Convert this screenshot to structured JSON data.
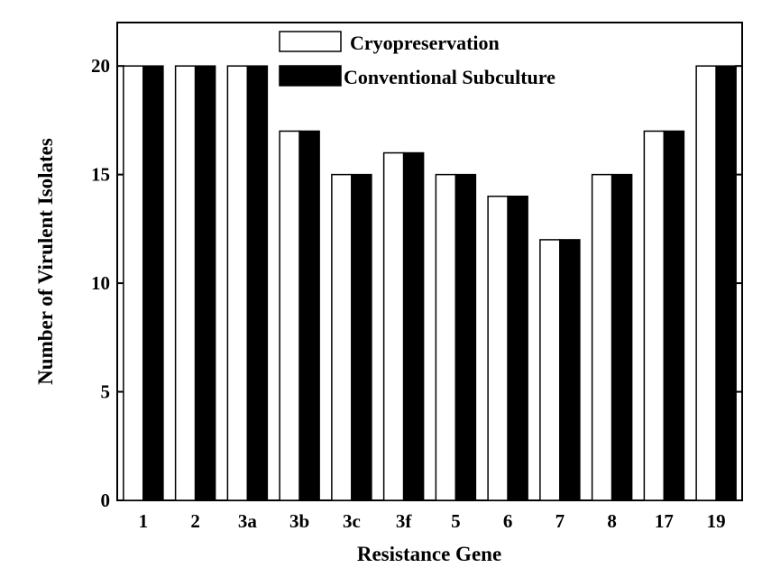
{
  "chart_data": {
    "type": "bar",
    "title": "",
    "xlabel": "Resistance Gene",
    "ylabel": "Number of Virulent Isolates",
    "categories": [
      "1",
      "2",
      "3a",
      "3b",
      "3c",
      "3f",
      "5",
      "6",
      "7",
      "8",
      "17",
      "19"
    ],
    "series": [
      {
        "name": "Cryopreservation",
        "color": "#ffffff",
        "values": [
          20,
          20,
          20,
          17,
          15,
          16,
          15,
          14,
          12,
          15,
          17,
          20
        ]
      },
      {
        "name": "Conventional Subculture",
        "color": "#000000",
        "values": [
          20,
          20,
          20,
          17,
          15,
          16,
          15,
          14,
          12,
          15,
          17,
          20
        ]
      }
    ],
    "ylim": [
      0,
      22
    ],
    "yticks": [
      0,
      5,
      10,
      15,
      20
    ],
    "grid": false,
    "legend_position": "top-center"
  }
}
